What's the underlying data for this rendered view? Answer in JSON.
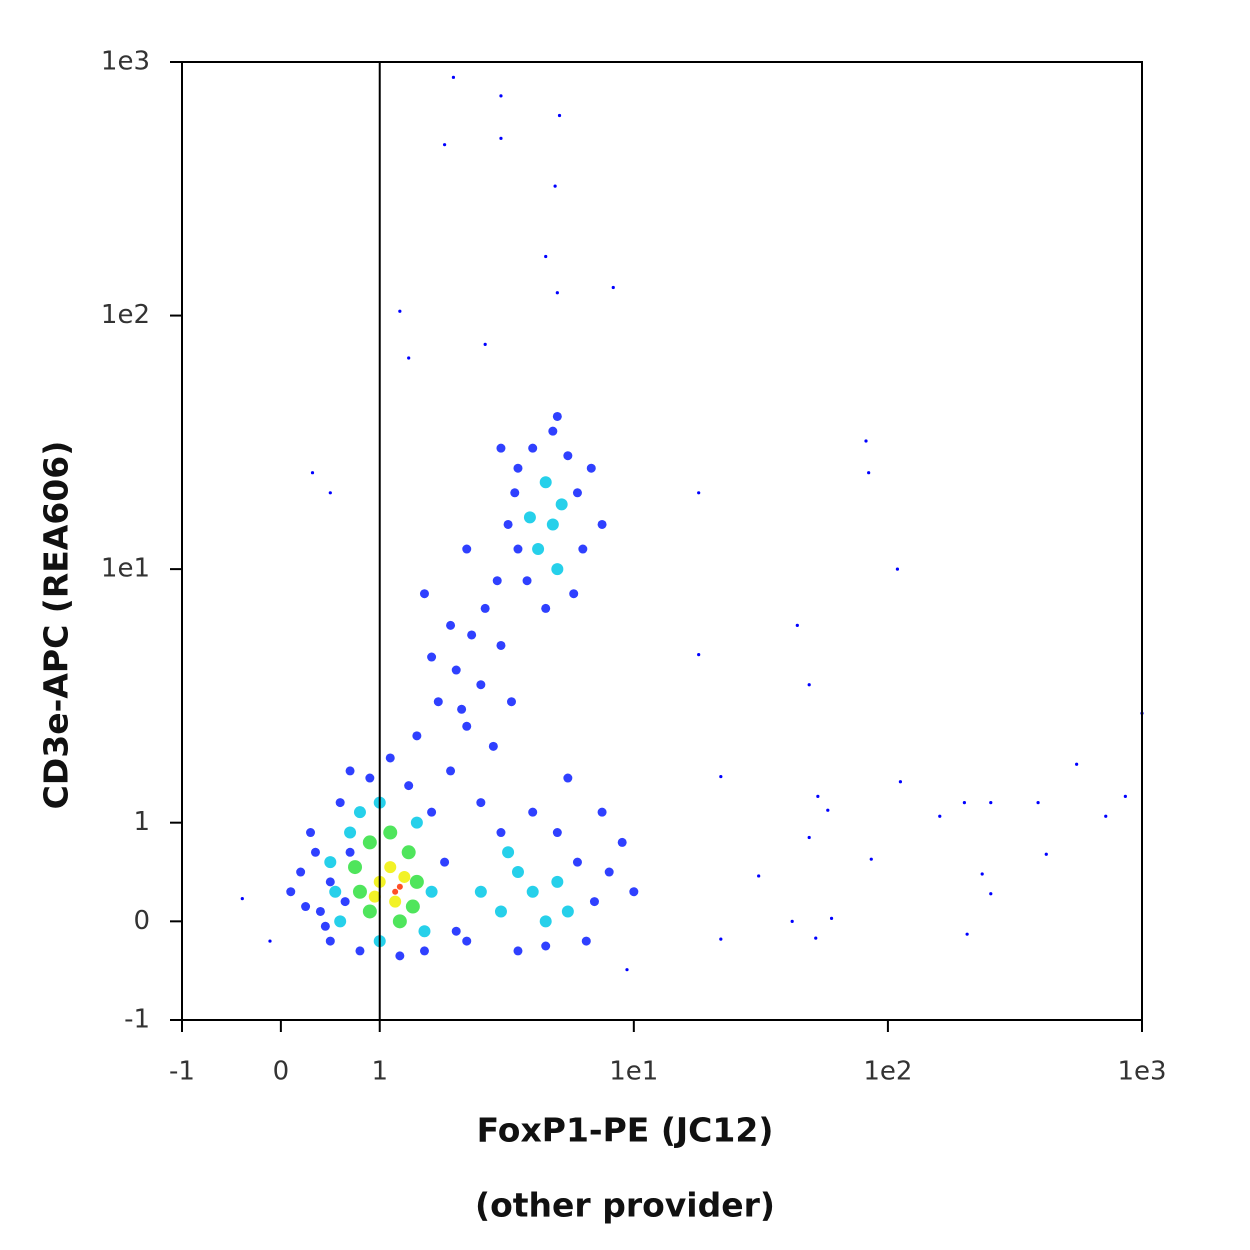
{
  "chart_data": {
    "type": "scatter",
    "xlabel": [
      "FoxP1-PE (JC12)",
      "(other provider)"
    ],
    "ylabel": "CD3e-APC (REA606)",
    "xscale": "biexponential",
    "yscale": "biexponential",
    "xlim": [
      -1,
      1000
    ],
    "ylim": [
      -1,
      1000
    ],
    "xticks": [
      -1,
      0,
      1,
      {
        "value": 10,
        "label": "1e1"
      },
      {
        "value": 100,
        "label": "1e2"
      },
      {
        "value": 1000,
        "label": "1e3"
      }
    ],
    "yticks": [
      -1,
      0,
      1,
      {
        "value": 10,
        "label": "1e1"
      },
      {
        "value": 100,
        "label": "1e2"
      },
      {
        "value": 1000,
        "label": "1e3"
      }
    ],
    "gate_x": 1,
    "series": [
      {
        "color": "#0000ff",
        "x": [
          1.95,
          3.0,
          5.1,
          1.8,
          3.0,
          4.9,
          4.5,
          8.3,
          5.0,
          1.2,
          2.6,
          1.3,
          82,
          84,
          18,
          0.32,
          0.5,
          109,
          44,
          49,
          18,
          1000,
          553,
          860,
          112,
          22,
          200,
          254,
          390,
          160,
          720,
          420,
          86,
          49,
          235,
          254,
          205,
          60,
          52,
          42,
          31,
          22,
          9.4,
          -0.39,
          -0.11,
          53,
          58
        ],
        "y": [
          870,
          735,
          615,
          472,
          500,
          324,
          171,
          129,
          123,
          104,
          77,
          68,
          32,
          24,
          20,
          24,
          20,
          10,
          6.0,
          3.5,
          4.6,
          2.7,
          1.7,
          1.27,
          1.45,
          1.52,
          1.2,
          1.2,
          1.2,
          1.06,
          1.06,
          0.68,
          0.63,
          0.85,
          0.48,
          0.28,
          -0.13,
          0.03,
          -0.17,
          0,
          0.46,
          -0.18,
          -0.49,
          0.23,
          -0.2,
          1.27,
          1.12
        ]
      },
      {
        "color": "#0a1eff",
        "x": [
          0.2,
          0.3,
          0.4,
          0.5,
          0.6,
          0.7,
          0.5,
          0.8,
          0.9,
          1.1,
          1.3,
          1.6,
          1.8,
          2.0,
          1.5,
          1.2,
          0.35,
          0.45,
          0.65,
          1.9,
          2.2,
          1.4,
          0.7,
          0.1,
          0.25,
          1.7,
          2.0,
          2.3,
          2.6,
          2.9,
          2.1,
          2.5,
          3.0,
          1.6,
          1.9,
          3.3,
          2.8,
          1.5,
          2.2,
          3.5,
          3.2,
          3.5,
          4.0,
          4.8,
          5.5,
          6.0,
          6.3,
          5.8,
          4.5,
          3.8,
          3.4,
          5.0,
          6.8,
          7.5,
          3.0,
          2.2,
          3,
          4,
          5,
          6,
          7,
          8,
          6.5,
          4.5,
          3.5,
          9,
          10,
          2.5,
          5.5,
          7.5
        ],
        "y": [
          0.5,
          0.9,
          0.1,
          -0.2,
          1.2,
          0.7,
          0.4,
          -0.3,
          1.5,
          1.8,
          1.4,
          1.1,
          0.6,
          -0.1,
          -0.3,
          -0.35,
          0.7,
          -0.05,
          0.2,
          1.6,
          2.4,
          2.2,
          1.6,
          0.3,
          0.15,
          3,
          4,
          5.5,
          7,
          9,
          2.8,
          3.5,
          5,
          4.5,
          6,
          3,
          2,
          8,
          12,
          12,
          15,
          25,
          30,
          35,
          28,
          20,
          12,
          8,
          7,
          9,
          20,
          40,
          25,
          15,
          30,
          -0.2,
          0.9,
          1.1,
          0.9,
          0.6,
          0.2,
          0.5,
          -0.2,
          -0.25,
          -0.3,
          0.8,
          0.3,
          1.2,
          1.5,
          1.1
        ]
      },
      {
        "color": "#00c8e6",
        "x": [
          0.5,
          0.6,
          0.8,
          1.0,
          1.4,
          1.6,
          1.5,
          1.0,
          0.55,
          0.7,
          2.5,
          3,
          3.5,
          4,
          4.5,
          5,
          5.5,
          3.2,
          4.2,
          4.8,
          5.2,
          4.5,
          5.0,
          3.9
        ],
        "y": [
          0.6,
          0.0,
          1.1,
          1.2,
          1.0,
          0.3,
          -0.1,
          -0.2,
          0.3,
          0.9,
          0.3,
          0.1,
          0.5,
          0.3,
          0.0,
          0.4,
          0.1,
          0.7,
          12,
          15,
          18,
          22,
          10,
          16
        ]
      },
      {
        "color": "#30e040",
        "x": [
          0.8,
          0.9,
          1.1,
          1.3,
          1.4,
          1.2,
          0.9,
          0.75,
          1.35
        ],
        "y": [
          0.3,
          0.8,
          0.9,
          0.7,
          0.4,
          0.0,
          0.1,
          0.55,
          0.15
        ]
      },
      {
        "color": "#f0f000",
        "x": [
          1.0,
          1.1,
          1.25,
          1.15,
          0.95
        ],
        "y": [
          0.4,
          0.55,
          0.45,
          0.2,
          0.25
        ]
      },
      {
        "color": "#ff3000",
        "x": [
          1.2,
          1.15
        ],
        "y": [
          0.35,
          0.3
        ]
      }
    ]
  }
}
